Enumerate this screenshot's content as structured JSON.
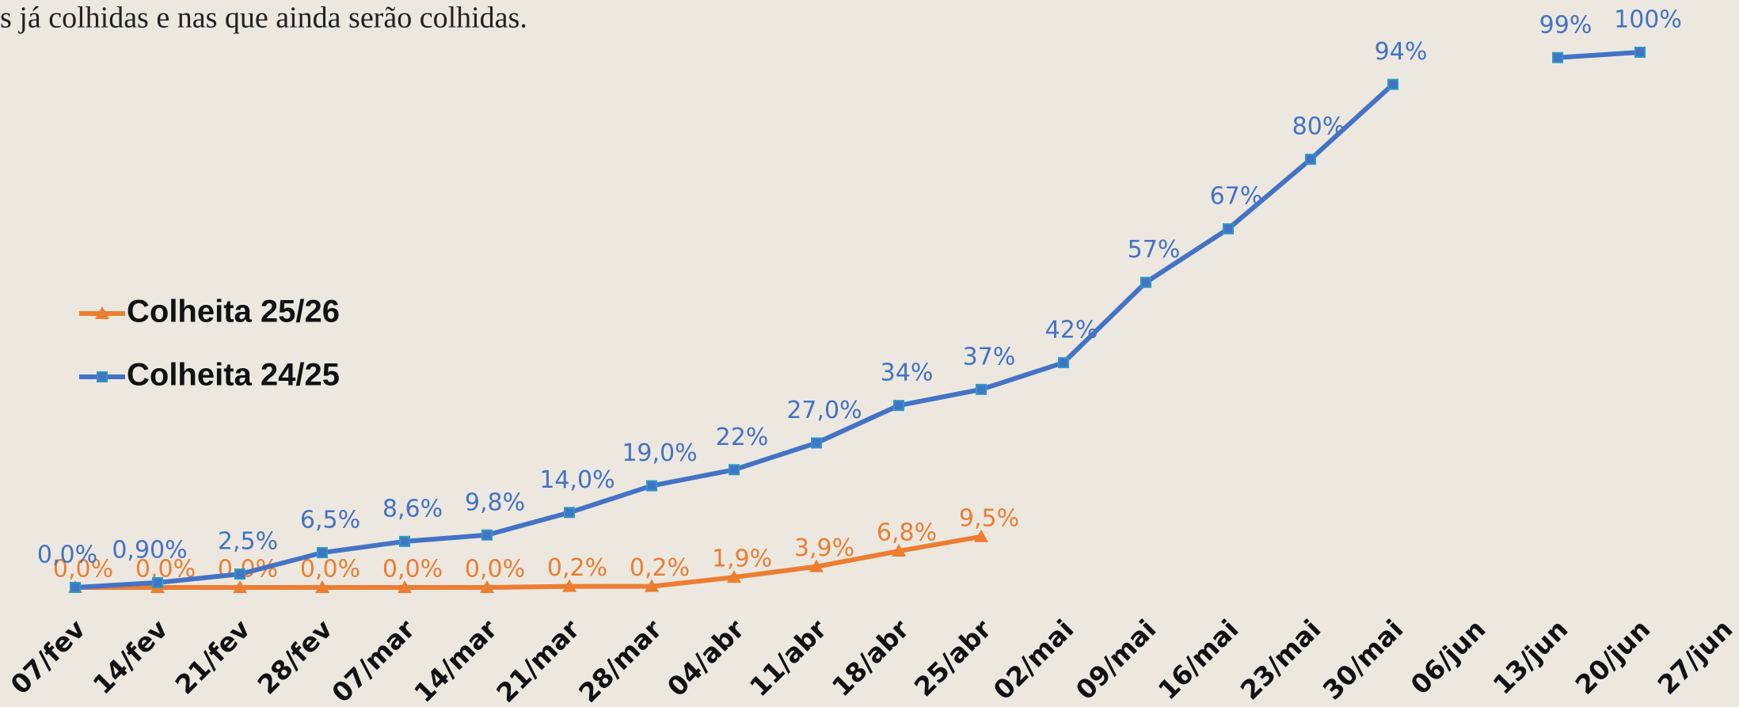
{
  "caption": "s já colhidas e nas que ainda serão colhidas.",
  "chart_data": {
    "type": "line",
    "categories": [
      "07/fev",
      "14/fev",
      "21/fev",
      "28/fev",
      "07/mar",
      "14/mar",
      "21/mar",
      "28/mar",
      "04/abr",
      "11/abr",
      "18/abr",
      "25/abr",
      "02/mai",
      "09/mai",
      "16/mai",
      "23/mai",
      "30/mai",
      "06/jun",
      "13/jun",
      "20/jun",
      "27/jun"
    ],
    "ylim": [
      0,
      100
    ],
    "series": [
      {
        "name": "Colheita 25/26",
        "color": "#ed7d31",
        "marker": "triangle",
        "values": [
          0,
          0,
          0,
          0,
          0,
          0,
          0.2,
          0.2,
          1.9,
          3.9,
          6.8,
          9.5,
          null,
          null,
          null,
          null,
          null,
          null,
          null,
          null,
          null
        ],
        "value_labels": [
          "0,0%",
          "0,0%",
          "0,0%",
          "0,0%",
          "0,0%",
          "0,0%",
          "0,2%",
          "0,2%",
          "1,9%",
          "3,9%",
          "6,8%",
          "9,5%",
          null,
          null,
          null,
          null,
          null,
          null,
          null,
          null,
          null
        ]
      },
      {
        "name": "Colheita 24/25",
        "color": "#4472c4",
        "marker": "square",
        "values": [
          0,
          0.9,
          2.5,
          6.5,
          8.6,
          9.8,
          14,
          19,
          22,
          27,
          34,
          37,
          42,
          57,
          67,
          80,
          94,
          null,
          99,
          100,
          null
        ],
        "value_labels": [
          "0,0%",
          "0,90%",
          "2,5%",
          "6,5%",
          "8,6%",
          "9,8%",
          "14,0%",
          "19,0%",
          "22%",
          "27,0%",
          "34%",
          "37%",
          "42%",
          "57%",
          "67%",
          "80%",
          "94%",
          null,
          "99%",
          "100%",
          null
        ]
      }
    ],
    "legend": "left"
  }
}
